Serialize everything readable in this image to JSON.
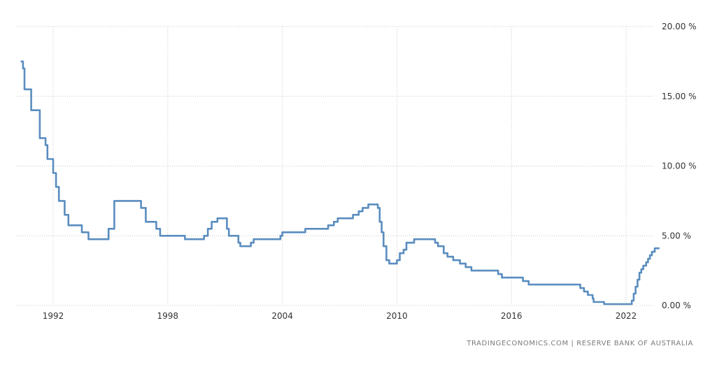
{
  "chart_data": {
    "type": "line",
    "title": "",
    "xlabel": "",
    "ylabel": "",
    "ylim": [
      0,
      20
    ],
    "xlim": [
      1990.3,
      2023.25
    ],
    "y_ticks": [
      "0.00 %",
      "5.00 %",
      "10.00 %",
      "15.00 %",
      "20.00 %"
    ],
    "y_tick_values": [
      0,
      5,
      10,
      15,
      20
    ],
    "x_ticks": [
      "1992",
      "1998",
      "2004",
      "2010",
      "2016",
      "2022"
    ],
    "x_tick_values": [
      1992,
      1998,
      2004,
      2010,
      2016,
      2022
    ],
    "grid": true,
    "grid_style": "dotted",
    "line_color": "#5a8dbf",
    "series": [
      {
        "values": [
          [
            1990.3,
            17.5
          ],
          [
            1990.42,
            17.0
          ],
          [
            1990.5,
            15.5
          ],
          [
            1990.85,
            14.0
          ],
          [
            1991.3,
            12.0
          ],
          [
            1991.6,
            11.5
          ],
          [
            1991.7,
            10.5
          ],
          [
            1992.0,
            9.5
          ],
          [
            1992.15,
            8.5
          ],
          [
            1992.3,
            7.5
          ],
          [
            1992.6,
            6.5
          ],
          [
            1992.8,
            5.75
          ],
          [
            1993.5,
            5.25
          ],
          [
            1993.85,
            4.75
          ],
          [
            1994.9,
            5.5
          ],
          [
            1995.2,
            7.5
          ],
          [
            1996.6,
            7.0
          ],
          [
            1996.85,
            6.0
          ],
          [
            1997.4,
            5.5
          ],
          [
            1997.6,
            5.0
          ],
          [
            1998.9,
            4.75
          ],
          [
            1999.9,
            5.0
          ],
          [
            2000.1,
            5.5
          ],
          [
            2000.3,
            6.0
          ],
          [
            2000.6,
            6.25
          ],
          [
            2001.1,
            5.5
          ],
          [
            2001.2,
            5.0
          ],
          [
            2001.7,
            4.5
          ],
          [
            2001.8,
            4.25
          ],
          [
            2002.35,
            4.5
          ],
          [
            2002.5,
            4.75
          ],
          [
            2003.9,
            5.0
          ],
          [
            2004.0,
            5.25
          ],
          [
            2005.2,
            5.5
          ],
          [
            2006.4,
            5.75
          ],
          [
            2006.7,
            6.0
          ],
          [
            2006.9,
            6.25
          ],
          [
            2007.7,
            6.5
          ],
          [
            2008.0,
            6.75
          ],
          [
            2008.2,
            7.0
          ],
          [
            2008.5,
            7.25
          ],
          [
            2009.0,
            7.0
          ],
          [
            2009.1,
            6.0
          ],
          [
            2009.2,
            5.25
          ],
          [
            2009.3,
            4.25
          ],
          [
            2009.45,
            3.25
          ],
          [
            2009.6,
            3.0
          ],
          [
            2010.0,
            3.25
          ],
          [
            2010.15,
            3.75
          ],
          [
            2010.35,
            4.0
          ],
          [
            2010.5,
            4.5
          ],
          [
            2010.9,
            4.75
          ],
          [
            2012.0,
            4.5
          ],
          [
            2012.15,
            4.25
          ],
          [
            2012.45,
            3.75
          ],
          [
            2012.65,
            3.5
          ],
          [
            2012.95,
            3.25
          ],
          [
            2013.3,
            3.0
          ],
          [
            2013.6,
            2.75
          ],
          [
            2013.9,
            2.5
          ],
          [
            2015.3,
            2.25
          ],
          [
            2015.5,
            2.0
          ],
          [
            2016.6,
            1.75
          ],
          [
            2016.9,
            1.5
          ],
          [
            2019.6,
            1.25
          ],
          [
            2019.8,
            1.0
          ],
          [
            2020.0,
            0.75
          ],
          [
            2020.25,
            0.5
          ],
          [
            2020.3,
            0.25
          ],
          [
            2020.85,
            0.1
          ],
          [
            2022.3,
            0.35
          ],
          [
            2022.4,
            0.85
          ],
          [
            2022.5,
            1.35
          ],
          [
            2022.6,
            1.85
          ],
          [
            2022.7,
            2.35
          ],
          [
            2022.8,
            2.6
          ],
          [
            2022.9,
            2.85
          ],
          [
            2023.05,
            3.1
          ],
          [
            2023.15,
            3.35
          ],
          [
            2023.25,
            3.6
          ],
          [
            2023.35,
            3.85
          ],
          [
            2023.5,
            4.1
          ],
          [
            2023.75,
            4.1
          ]
        ]
      }
    ]
  },
  "source_text": "TRADINGECONOMICS.COM  |  RESERVE BANK OF AUSTRALIA"
}
